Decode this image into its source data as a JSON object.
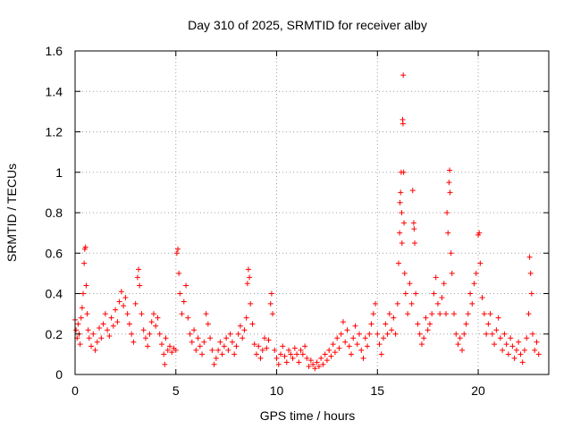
{
  "chart_data": {
    "type": "scatter",
    "title": "Day 310 of 2025, SRMTID for receiver alby",
    "xlabel": "GPS time / hours",
    "ylabel": "SRMTID / TECUs",
    "xlim": [
      0,
      23.5
    ],
    "ylim": [
      0,
      1.6
    ],
    "xticks": [
      0,
      5,
      10,
      15,
      20
    ],
    "xtick_labels": [
      "0",
      "5",
      "10",
      "15",
      "20"
    ],
    "yticks": [
      0,
      0.2,
      0.4,
      0.6,
      0.8,
      1.0,
      1.2,
      1.4,
      1.6
    ],
    "ytick_labels": [
      "0",
      "0.2",
      "0.4",
      "0.6",
      "0.8",
      "1",
      "1.2",
      "1.4",
      "1.6"
    ],
    "grid": true,
    "marker": "+",
    "color": "#ff0000",
    "series": [
      {
        "name": "SRMTID",
        "points": [
          [
            0.0,
            0.27
          ],
          [
            0.05,
            0.22
          ],
          [
            0.1,
            0.18
          ],
          [
            0.15,
            0.25
          ],
          [
            0.2,
            0.2
          ],
          [
            0.25,
            0.15
          ],
          [
            0.3,
            0.28
          ],
          [
            0.35,
            0.33
          ],
          [
            0.4,
            0.4
          ],
          [
            0.45,
            0.55
          ],
          [
            0.48,
            0.62
          ],
          [
            0.52,
            0.63
          ],
          [
            0.55,
            0.44
          ],
          [
            0.6,
            0.3
          ],
          [
            0.65,
            0.22
          ],
          [
            0.7,
            0.18
          ],
          [
            0.8,
            0.14
          ],
          [
            0.9,
            0.2
          ],
          [
            1.0,
            0.12
          ],
          [
            1.1,
            0.16
          ],
          [
            1.2,
            0.23
          ],
          [
            1.3,
            0.18
          ],
          [
            1.4,
            0.25
          ],
          [
            1.5,
            0.3
          ],
          [
            1.6,
            0.22
          ],
          [
            1.7,
            0.19
          ],
          [
            1.8,
            0.28
          ],
          [
            1.9,
            0.24
          ],
          [
            2.0,
            0.32
          ],
          [
            2.1,
            0.26
          ],
          [
            2.2,
            0.36
          ],
          [
            2.3,
            0.41
          ],
          [
            2.4,
            0.34
          ],
          [
            2.5,
            0.38
          ],
          [
            2.6,
            0.3
          ],
          [
            2.7,
            0.25
          ],
          [
            2.8,
            0.2
          ],
          [
            2.9,
            0.16
          ],
          [
            3.0,
            0.35
          ],
          [
            3.1,
            0.48
          ],
          [
            3.15,
            0.52
          ],
          [
            3.2,
            0.44
          ],
          [
            3.3,
            0.3
          ],
          [
            3.4,
            0.22
          ],
          [
            3.5,
            0.18
          ],
          [
            3.6,
            0.14
          ],
          [
            3.7,
            0.2
          ],
          [
            3.8,
            0.26
          ],
          [
            3.9,
            0.3
          ],
          [
            4.0,
            0.24
          ],
          [
            4.1,
            0.28
          ],
          [
            4.2,
            0.2
          ],
          [
            4.3,
            0.15
          ],
          [
            4.4,
            0.1
          ],
          [
            4.45,
            0.05
          ],
          [
            4.5,
            0.18
          ],
          [
            4.6,
            0.12
          ],
          [
            4.7,
            0.14
          ],
          [
            4.8,
            0.11
          ],
          [
            4.9,
            0.13
          ],
          [
            5.0,
            0.12
          ],
          [
            5.05,
            0.6
          ],
          [
            5.1,
            0.62
          ],
          [
            5.15,
            0.5
          ],
          [
            5.2,
            0.4
          ],
          [
            5.3,
            0.3
          ],
          [
            5.4,
            0.36
          ],
          [
            5.5,
            0.44
          ],
          [
            5.6,
            0.28
          ],
          [
            5.7,
            0.2
          ],
          [
            5.8,
            0.16
          ],
          [
            5.9,
            0.22
          ],
          [
            6.0,
            0.12
          ],
          [
            6.1,
            0.18
          ],
          [
            6.2,
            0.14
          ],
          [
            6.3,
            0.1
          ],
          [
            6.4,
            0.16
          ],
          [
            6.5,
            0.3
          ],
          [
            6.6,
            0.25
          ],
          [
            6.7,
            0.18
          ],
          [
            6.8,
            0.12
          ],
          [
            6.9,
            0.05
          ],
          [
            7.0,
            0.08
          ],
          [
            7.1,
            0.12
          ],
          [
            7.2,
            0.16
          ],
          [
            7.3,
            0.1
          ],
          [
            7.4,
            0.14
          ],
          [
            7.5,
            0.18
          ],
          [
            7.6,
            0.12
          ],
          [
            7.7,
            0.2
          ],
          [
            7.8,
            0.16
          ],
          [
            7.9,
            0.1
          ],
          [
            8.0,
            0.14
          ],
          [
            8.1,
            0.2
          ],
          [
            8.2,
            0.24
          ],
          [
            8.3,
            0.18
          ],
          [
            8.4,
            0.22
          ],
          [
            8.5,
            0.28
          ],
          [
            8.55,
            0.45
          ],
          [
            8.6,
            0.52
          ],
          [
            8.65,
            0.48
          ],
          [
            8.7,
            0.35
          ],
          [
            8.8,
            0.25
          ],
          [
            8.9,
            0.15
          ],
          [
            9.0,
            0.1
          ],
          [
            9.1,
            0.14
          ],
          [
            9.2,
            0.08
          ],
          [
            9.3,
            0.12
          ],
          [
            9.4,
            0.18
          ],
          [
            9.5,
            0.13
          ],
          [
            9.6,
            0.17
          ],
          [
            9.7,
            0.35
          ],
          [
            9.75,
            0.4
          ],
          [
            9.8,
            0.3
          ],
          [
            9.9,
            0.12
          ],
          [
            10.0,
            0.08
          ],
          [
            10.1,
            0.05
          ],
          [
            10.2,
            0.1
          ],
          [
            10.3,
            0.14
          ],
          [
            10.4,
            0.09
          ],
          [
            10.5,
            0.06
          ],
          [
            10.6,
            0.12
          ],
          [
            10.7,
            0.1
          ],
          [
            10.8,
            0.08
          ],
          [
            10.9,
            0.13
          ],
          [
            11.0,
            0.1
          ],
          [
            11.1,
            0.06
          ],
          [
            11.2,
            0.12
          ],
          [
            11.3,
            0.1
          ],
          [
            11.4,
            0.14
          ],
          [
            11.5,
            0.08
          ],
          [
            11.6,
            0.04
          ],
          [
            11.7,
            0.07
          ],
          [
            11.8,
            0.05
          ],
          [
            11.9,
            0.03
          ],
          [
            12.0,
            0.06
          ],
          [
            12.1,
            0.04
          ],
          [
            12.2,
            0.08
          ],
          [
            12.3,
            0.05
          ],
          [
            12.4,
            0.1
          ],
          [
            12.5,
            0.07
          ],
          [
            12.6,
            0.12
          ],
          [
            12.7,
            0.09
          ],
          [
            12.8,
            0.15
          ],
          [
            12.9,
            0.11
          ],
          [
            13.0,
            0.18
          ],
          [
            13.1,
            0.13
          ],
          [
            13.2,
            0.2
          ],
          [
            13.3,
            0.26
          ],
          [
            13.4,
            0.16
          ],
          [
            13.5,
            0.22
          ],
          [
            13.6,
            0.14
          ],
          [
            13.7,
            0.1
          ],
          [
            13.8,
            0.18
          ],
          [
            13.9,
            0.24
          ],
          [
            14.0,
            0.15
          ],
          [
            14.1,
            0.2
          ],
          [
            14.2,
            0.12
          ],
          [
            14.3,
            0.08
          ],
          [
            14.4,
            0.18
          ],
          [
            14.5,
            0.14
          ],
          [
            14.6,
            0.2
          ],
          [
            14.7,
            0.25
          ],
          [
            14.8,
            0.3
          ],
          [
            14.9,
            0.35
          ],
          [
            15.0,
            0.2
          ],
          [
            15.1,
            0.15
          ],
          [
            15.2,
            0.1
          ],
          [
            15.3,
            0.18
          ],
          [
            15.4,
            0.25
          ],
          [
            15.5,
            0.2
          ],
          [
            15.6,
            0.3
          ],
          [
            15.7,
            0.22
          ],
          [
            15.8,
            0.28
          ],
          [
            15.9,
            0.2
          ],
          [
            16.0,
            0.35
          ],
          [
            16.05,
            0.55
          ],
          [
            16.1,
            0.7
          ],
          [
            16.12,
            0.85
          ],
          [
            16.15,
            0.9
          ],
          [
            16.18,
            1.0
          ],
          [
            16.2,
            0.8
          ],
          [
            16.22,
            0.65
          ],
          [
            16.25,
            1.26
          ],
          [
            16.27,
            1.24
          ],
          [
            16.28,
            1.48
          ],
          [
            16.3,
            1.0
          ],
          [
            16.32,
            0.75
          ],
          [
            16.35,
            0.5
          ],
          [
            16.4,
            0.4
          ],
          [
            16.5,
            0.3
          ],
          [
            16.6,
            0.45
          ],
          [
            16.7,
            0.35
          ],
          [
            16.75,
            0.91
          ],
          [
            16.8,
            0.75
          ],
          [
            16.82,
            0.72
          ],
          [
            16.85,
            0.65
          ],
          [
            16.9,
            0.4
          ],
          [
            17.0,
            0.25
          ],
          [
            17.1,
            0.2
          ],
          [
            17.2,
            0.15
          ],
          [
            17.3,
            0.18
          ],
          [
            17.4,
            0.28
          ],
          [
            17.5,
            0.22
          ],
          [
            17.6,
            0.25
          ],
          [
            17.7,
            0.3
          ],
          [
            17.8,
            0.4
          ],
          [
            17.9,
            0.48
          ],
          [
            18.0,
            0.35
          ],
          [
            18.1,
            0.3
          ],
          [
            18.2,
            0.38
          ],
          [
            18.3,
            0.45
          ],
          [
            18.4,
            0.3
          ],
          [
            18.45,
            0.8
          ],
          [
            18.5,
            0.7
          ],
          [
            18.55,
            0.95
          ],
          [
            18.58,
            1.01
          ],
          [
            18.6,
            0.9
          ],
          [
            18.65,
            0.6
          ],
          [
            18.7,
            0.5
          ],
          [
            18.8,
            0.3
          ],
          [
            18.9,
            0.2
          ],
          [
            19.0,
            0.15
          ],
          [
            19.1,
            0.18
          ],
          [
            19.2,
            0.12
          ],
          [
            19.3,
            0.2
          ],
          [
            19.4,
            0.25
          ],
          [
            19.5,
            0.3
          ],
          [
            19.6,
            0.4
          ],
          [
            19.7,
            0.35
          ],
          [
            19.8,
            0.45
          ],
          [
            19.9,
            0.5
          ],
          [
            20.0,
            0.69
          ],
          [
            20.05,
            0.7
          ],
          [
            20.1,
            0.55
          ],
          [
            20.2,
            0.38
          ],
          [
            20.3,
            0.3
          ],
          [
            20.4,
            0.2
          ],
          [
            20.5,
            0.25
          ],
          [
            20.6,
            0.3
          ],
          [
            20.7,
            0.2
          ],
          [
            20.8,
            0.15
          ],
          [
            20.9,
            0.22
          ],
          [
            21.0,
            0.28
          ],
          [
            21.1,
            0.18
          ],
          [
            21.2,
            0.12
          ],
          [
            21.3,
            0.2
          ],
          [
            21.4,
            0.15
          ],
          [
            21.5,
            0.1
          ],
          [
            21.6,
            0.18
          ],
          [
            21.7,
            0.14
          ],
          [
            21.8,
            0.08
          ],
          [
            21.9,
            0.12
          ],
          [
            22.0,
            0.16
          ],
          [
            22.1,
            0.1
          ],
          [
            22.2,
            0.06
          ],
          [
            22.3,
            0.12
          ],
          [
            22.4,
            0.18
          ],
          [
            22.5,
            0.3
          ],
          [
            22.55,
            0.58
          ],
          [
            22.6,
            0.5
          ],
          [
            22.65,
            0.4
          ],
          [
            22.7,
            0.2
          ],
          [
            22.8,
            0.12
          ],
          [
            22.9,
            0.16
          ],
          [
            23.0,
            0.1
          ]
        ]
      }
    ]
  }
}
